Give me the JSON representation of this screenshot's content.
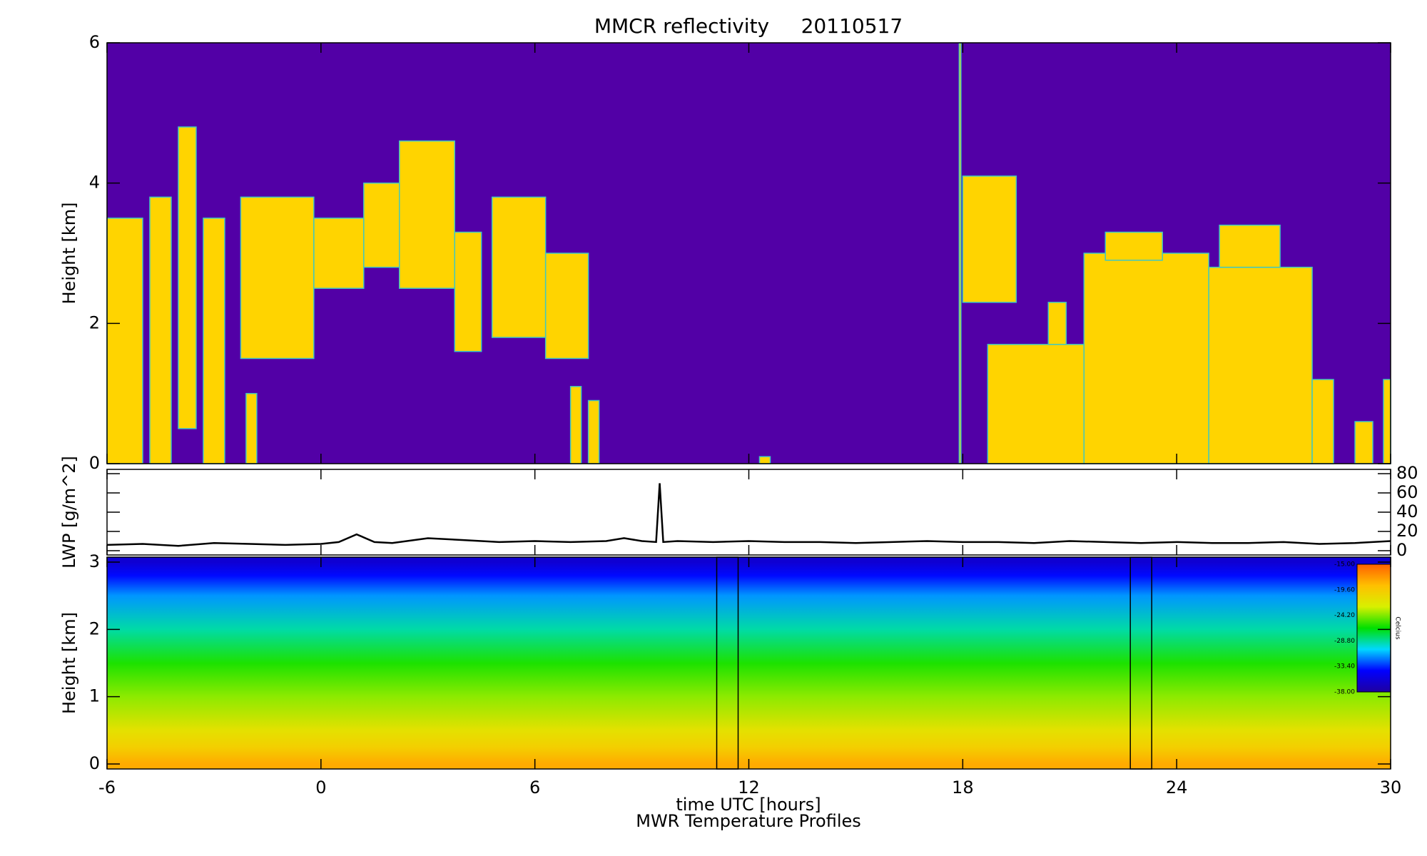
{
  "chart_data": [
    {
      "type": "heatmap",
      "title": "MMCR reflectivity     20110517",
      "ylabel": "Height [km]",
      "xlim": [
        -6,
        30
      ],
      "ylim": [
        0,
        6
      ],
      "yticks": [
        0,
        2,
        4,
        6
      ],
      "background": "#5200a6",
      "color": "#ffd400",
      "edge_color": "#40c8c0",
      "regions": [
        {
          "x": [
            -6,
            -5.0
          ],
          "y": [
            0,
            3.5
          ]
        },
        {
          "x": [
            -4.8,
            -4.2
          ],
          "y": [
            0,
            3.8
          ]
        },
        {
          "x": [
            -4.0,
            -3.5
          ],
          "y": [
            0.5,
            4.8
          ]
        },
        {
          "x": [
            -3.3,
            -2.7
          ],
          "y": [
            0,
            3.5
          ]
        },
        {
          "x": [
            -2.25,
            -0.2
          ],
          "y": [
            1.5,
            3.8
          ]
        },
        {
          "x": [
            -2.1,
            -1.8
          ],
          "y": [
            0,
            1.0
          ]
        },
        {
          "x": [
            -0.2,
            1.2
          ],
          "y": [
            2.5,
            3.5
          ]
        },
        {
          "x": [
            1.2,
            2.3
          ],
          "y": [
            2.8,
            4.0
          ]
        },
        {
          "x": [
            2.2,
            3.75
          ],
          "y": [
            2.5,
            4.6
          ]
        },
        {
          "x": [
            3.75,
            4.5
          ],
          "y": [
            1.6,
            3.3
          ]
        },
        {
          "x": [
            4.8,
            6.3
          ],
          "y": [
            1.8,
            3.8
          ]
        },
        {
          "x": [
            6.3,
            7.5
          ],
          "y": [
            1.5,
            3.0
          ]
        },
        {
          "x": [
            7.0,
            7.3
          ],
          "y": [
            0,
            1.1
          ]
        },
        {
          "x": [
            7.5,
            7.8
          ],
          "y": [
            0,
            0.9
          ]
        },
        {
          "x": [
            12.3,
            12.6
          ],
          "y": [
            0,
            0.1
          ]
        },
        {
          "x": [
            17.9,
            17.95
          ],
          "y": [
            0,
            6
          ]
        },
        {
          "x": [
            18.0,
            19.5
          ],
          "y": [
            2.3,
            4.1
          ]
        },
        {
          "x": [
            18.7,
            21.4
          ],
          "y": [
            0,
            1.7
          ]
        },
        {
          "x": [
            20.4,
            20.9
          ],
          "y": [
            1.7,
            2.3
          ]
        },
        {
          "x": [
            21.4,
            24.9
          ],
          "y": [
            0,
            3.0
          ]
        },
        {
          "x": [
            22.0,
            23.6
          ],
          "y": [
            2.9,
            3.3
          ]
        },
        {
          "x": [
            24.9,
            27.8
          ],
          "y": [
            0,
            2.8
          ]
        },
        {
          "x": [
            25.2,
            26.9
          ],
          "y": [
            2.8,
            3.4
          ]
        },
        {
          "x": [
            27.8,
            28.4
          ],
          "y": [
            0,
            1.2
          ]
        },
        {
          "x": [
            29.0,
            29.5
          ],
          "y": [
            0,
            0.6
          ]
        },
        {
          "x": [
            29.8,
            30
          ],
          "y": [
            0,
            1.2
          ]
        }
      ]
    },
    {
      "type": "line",
      "ylabel": "LWP [g/m^2]",
      "xlim": [
        -6,
        30
      ],
      "ylim": [
        0,
        80
      ],
      "yticks": [
        0,
        20,
        40,
        60,
        80
      ],
      "color": "#000000",
      "x": [
        -6,
        -5,
        -4,
        -3,
        -2,
        -1,
        0,
        0.5,
        1,
        1.5,
        2,
        3,
        4,
        5,
        6,
        7,
        8,
        8.5,
        9,
        9.4,
        9.5,
        9.6,
        10,
        11,
        12,
        13,
        14,
        15,
        16,
        17,
        18,
        19,
        20,
        21,
        22,
        23,
        24,
        25,
        26,
        27,
        28,
        29,
        30
      ],
      "values": [
        6,
        7,
        5,
        8,
        7,
        6,
        7,
        9,
        17,
        9,
        8,
        13,
        11,
        9,
        10,
        9,
        10,
        13,
        10,
        9,
        70,
        9,
        10,
        9,
        10,
        9,
        9,
        8,
        9,
        10,
        9,
        9,
        8,
        10,
        9,
        8,
        9,
        8,
        8,
        9,
        7,
        8,
        10
      ]
    },
    {
      "type": "profile",
      "ylabel": "Height [km]",
      "xlabel": "time UTC [hours]",
      "caption": "MWR Temperature Profiles",
      "xlim": [
        -6,
        30
      ],
      "xticks": [
        -6,
        0,
        6,
        12,
        18,
        24,
        30
      ],
      "ylim": [
        0,
        3
      ],
      "yticks": [
        0,
        1,
        2,
        3
      ],
      "heights": [
        0,
        0.25,
        0.5,
        1,
        1.5,
        2,
        2.5,
        2.8,
        3
      ],
      "temperatures": [
        -18,
        -20,
        -21.5,
        -24,
        -26,
        -29,
        -31.5,
        -34,
        -36
      ],
      "missing": [
        [
          11.1,
          11.7
        ],
        [
          22.7,
          23.3
        ]
      ],
      "colorbar": {
        "label": "Celcius",
        "clim": [
          -38,
          -15
        ],
        "ticks": [
          {
            "value": -15,
            "label": "-15.00"
          },
          {
            "value": -19.6,
            "label": "-19.60"
          },
          {
            "value": -24.2,
            "label": "-24.20"
          },
          {
            "value": -28.8,
            "label": "-28.80"
          },
          {
            "value": -33.4,
            "label": "-33.40"
          },
          {
            "value": -38,
            "label": "-38.00"
          }
        ],
        "colors": [
          "#2000a0",
          "#0000ff",
          "#00d8ff",
          "#00e000",
          "#d8f000",
          "#ffc000",
          "#ff6000"
        ]
      }
    }
  ]
}
